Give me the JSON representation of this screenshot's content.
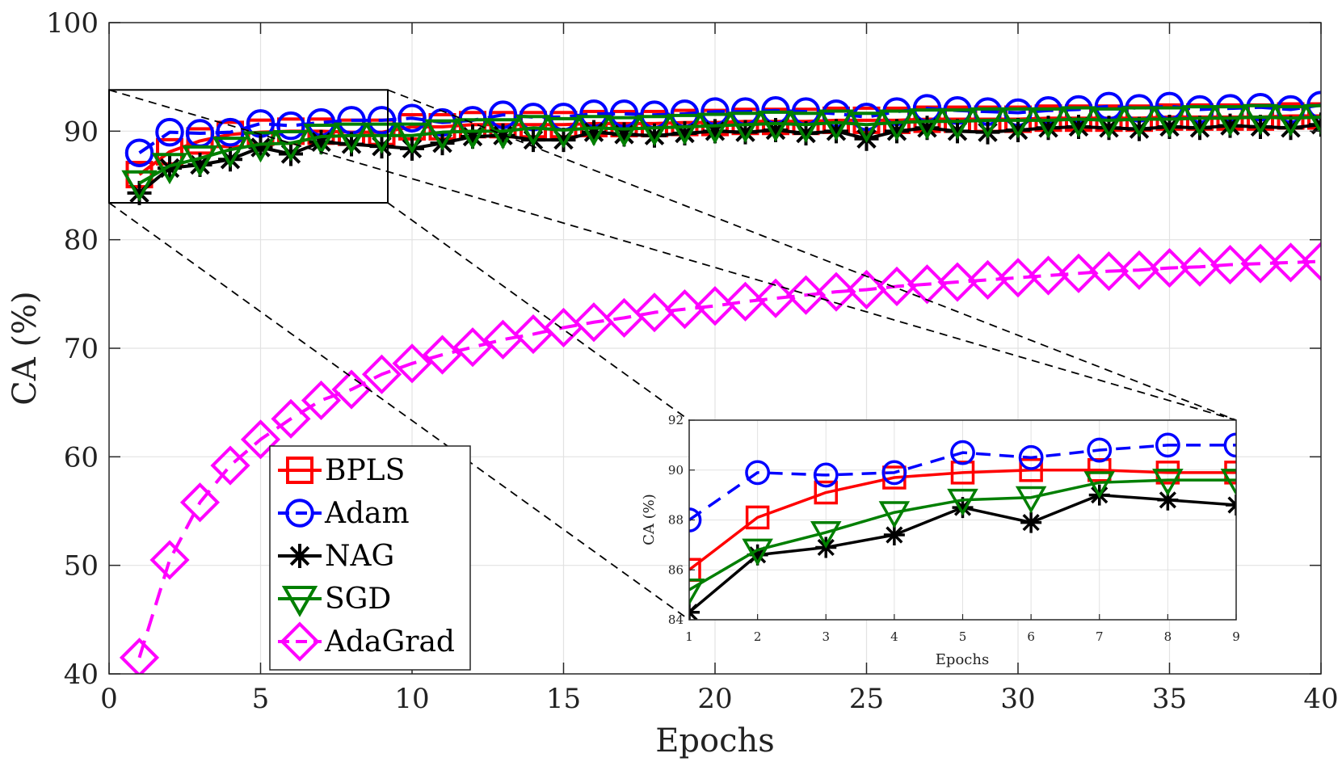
{
  "chart_data": {
    "type": "line",
    "title": "",
    "xlabel": "Epochs",
    "ylabel": "CA (%)",
    "xlim": [
      0,
      40
    ],
    "ylim": [
      40,
      100
    ],
    "x_ticks": [
      "0",
      "5",
      "10",
      "15",
      "20",
      "25",
      "30",
      "35",
      "40"
    ],
    "y_ticks": [
      "40",
      "50",
      "60",
      "70",
      "80",
      "90",
      "100"
    ],
    "grid": true,
    "legend_position": "bottom-left",
    "x": [
      1,
      2,
      3,
      4,
      5,
      6,
      7,
      8,
      9,
      10,
      11,
      12,
      13,
      14,
      15,
      16,
      17,
      18,
      19,
      20,
      21,
      22,
      23,
      24,
      25,
      26,
      27,
      28,
      29,
      30,
      31,
      32,
      33,
      34,
      35,
      36,
      37,
      38,
      39,
      40
    ],
    "series": [
      {
        "name": "BPLS",
        "color": "#ff0000",
        "marker": "square",
        "line": "solid",
        "values": [
          86.0,
          88.1,
          89.1,
          89.7,
          89.9,
          90.0,
          90.0,
          89.9,
          89.9,
          90.4,
          90.4,
          90.6,
          90.6,
          90.6,
          90.6,
          90.7,
          90.7,
          90.7,
          90.8,
          90.8,
          90.9,
          90.9,
          90.9,
          91.0,
          91.0,
          91.0,
          91.1,
          91.1,
          91.1,
          91.1,
          91.2,
          91.2,
          91.2,
          91.2,
          91.3,
          91.3,
          91.3,
          91.3,
          91.4,
          91.4
        ]
      },
      {
        "name": "Adam",
        "color": "#0000ff",
        "marker": "circle",
        "line": "dashed",
        "values": [
          88.0,
          89.9,
          89.8,
          89.9,
          90.7,
          90.5,
          90.8,
          91.0,
          91.0,
          91.2,
          90.8,
          91.0,
          91.5,
          91.3,
          91.3,
          91.6,
          91.6,
          91.5,
          91.6,
          91.8,
          91.8,
          91.9,
          91.8,
          91.6,
          91.3,
          91.8,
          92.1,
          91.9,
          91.8,
          91.7,
          91.9,
          92.0,
          92.3,
          92.1,
          92.3,
          92.0,
          92.1,
          92.2,
          92.0,
          92.4
        ]
      },
      {
        "name": "NAG",
        "color": "#000000",
        "marker": "star",
        "line": "solid",
        "values": [
          84.3,
          86.6,
          86.9,
          87.4,
          88.5,
          87.9,
          89.0,
          88.8,
          88.6,
          88.4,
          88.9,
          89.5,
          89.6,
          89.2,
          89.2,
          89.9,
          89.7,
          89.6,
          89.8,
          90.0,
          89.9,
          90.1,
          89.8,
          90.0,
          89.3,
          90.0,
          90.3,
          90.0,
          89.9,
          90.1,
          90.3,
          90.4,
          90.3,
          90.2,
          90.4,
          90.3,
          90.5,
          90.4,
          90.3,
          90.6
        ]
      },
      {
        "name": "SGD",
        "color": "#007f00",
        "marker": "triangle-down",
        "line": "solid",
        "values": [
          85.2,
          86.8,
          87.5,
          88.3,
          88.8,
          88.9,
          89.5,
          89.6,
          89.6,
          89.6,
          89.9,
          90.0,
          90.0,
          90.3,
          90.1,
          90.3,
          90.2,
          90.3,
          90.4,
          90.5,
          90.6,
          90.7,
          90.6,
          90.8,
          90.6,
          90.8,
          90.9,
          90.9,
          91.0,
          91.0,
          91.0,
          91.1,
          91.0,
          91.1,
          91.1,
          91.2,
          91.2,
          91.3,
          91.2,
          91.3
        ]
      },
      {
        "name": "AdaGrad",
        "color": "#ff00ff",
        "marker": "diamond",
        "line": "dashed",
        "values": [
          41.5,
          50.5,
          55.8,
          59.2,
          61.6,
          63.5,
          65.2,
          66.2,
          67.6,
          68.6,
          69.4,
          70.1,
          70.8,
          71.3,
          71.9,
          72.4,
          72.8,
          73.3,
          73.6,
          73.9,
          74.3,
          74.6,
          74.9,
          75.2,
          75.4,
          75.7,
          75.9,
          76.1,
          76.3,
          76.5,
          76.7,
          76.9,
          77.1,
          77.2,
          77.4,
          77.5,
          77.7,
          77.8,
          77.9,
          78.0
        ]
      }
    ],
    "inset": {
      "xlabel": "Epochs",
      "ylabel": "CA (%)",
      "xlim": [
        1,
        9
      ],
      "ylim": [
        84,
        92
      ],
      "x_ticks": [
        "1",
        "2",
        "3",
        "4",
        "5",
        "6",
        "7",
        "8",
        "9"
      ],
      "y_ticks": [
        "84",
        "86",
        "88",
        "90",
        "92"
      ],
      "source_region": {
        "x_range": [
          0,
          9.2
        ],
        "y_range": [
          83.4,
          93.8
        ]
      }
    }
  }
}
